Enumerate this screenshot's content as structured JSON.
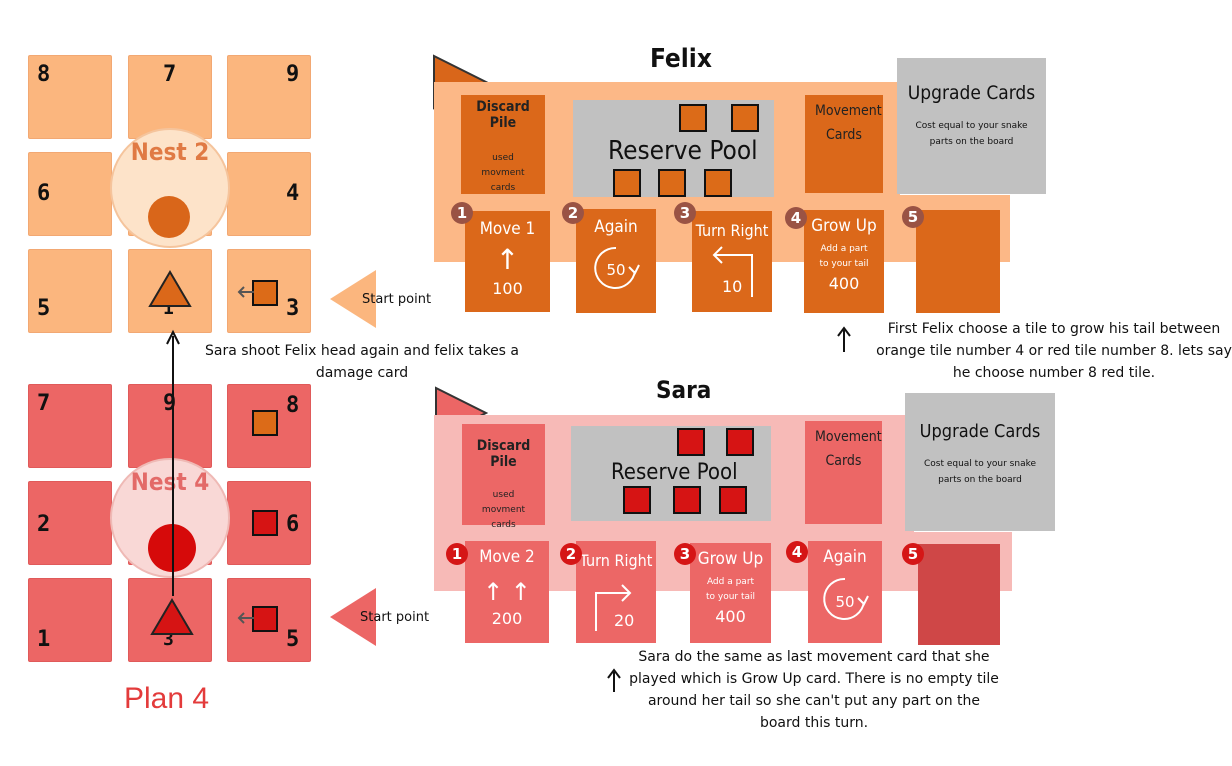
{
  "boards": {
    "orange": {
      "nest_label": "Nest 2",
      "tiles": [
        "8",
        "7",
        "9",
        "6",
        "4",
        "5",
        "1",
        "3"
      ]
    },
    "red": {
      "nest_label": "Nest 4",
      "tiles": [
        "7",
        "9",
        "8",
        "2",
        "6",
        "1",
        "3",
        "5"
      ]
    }
  },
  "plan_label": "Plan 4",
  "start_point_label": "Start point",
  "felix": {
    "name": "Felix",
    "discard_title": "Discard Pile",
    "discard_sub": "used movment cards",
    "reserve": "Reserve Pool",
    "movement": "Movement Cards",
    "upgrade_title": "Upgrade Cards",
    "upgrade_sub": "Cost equal to your snake parts on the board",
    "cards": [
      {
        "n": "1",
        "title": "Move 1",
        "icon": "↑",
        "value": "100"
      },
      {
        "n": "2",
        "title": "Again",
        "value": "50"
      },
      {
        "n": "3",
        "title": "Turn Right",
        "value": "10"
      },
      {
        "n": "4",
        "title": "Grow Up",
        "sub": "Add a part to your tail",
        "value": "400"
      },
      {
        "n": "5"
      }
    ]
  },
  "sara": {
    "name": "Sara",
    "discard_title": "Discard Pile",
    "discard_sub": "used movment cards",
    "reserve": "Reserve Pool",
    "movement": "Movement Cards",
    "upgrade_title": "Upgrade Cards",
    "upgrade_sub": "Cost equal to your snake parts on the board",
    "cards": [
      {
        "n": "1",
        "title": "Move 2",
        "icon": "↑ ↑",
        "value": "200"
      },
      {
        "n": "2",
        "title": "Turn Right",
        "value": "20"
      },
      {
        "n": "3",
        "title": "Grow Up",
        "sub": "Add a part to your tail",
        "value": "400"
      },
      {
        "n": "4",
        "title": "Again",
        "value": "50"
      },
      {
        "n": "5"
      }
    ]
  },
  "notes": {
    "shoot": "Sara shoot  Felix head again and felix takes a damage card",
    "felix": "First Felix choose a tile to grow his tail between orange tile number 4 or red tile number 8. lets say he choose number 8 red tile.",
    "sara": "Sara do the same as last movement card that she played which is Grow Up card. There is no empty tile around her tail so she can't put any part on the board this turn."
  },
  "colors": {
    "orange_tile": "#fbb67e",
    "red_tile": "#ec6665",
    "orange_card": "#db681a",
    "red_card": "#ec6766",
    "plan_text": "#e33b3b"
  }
}
